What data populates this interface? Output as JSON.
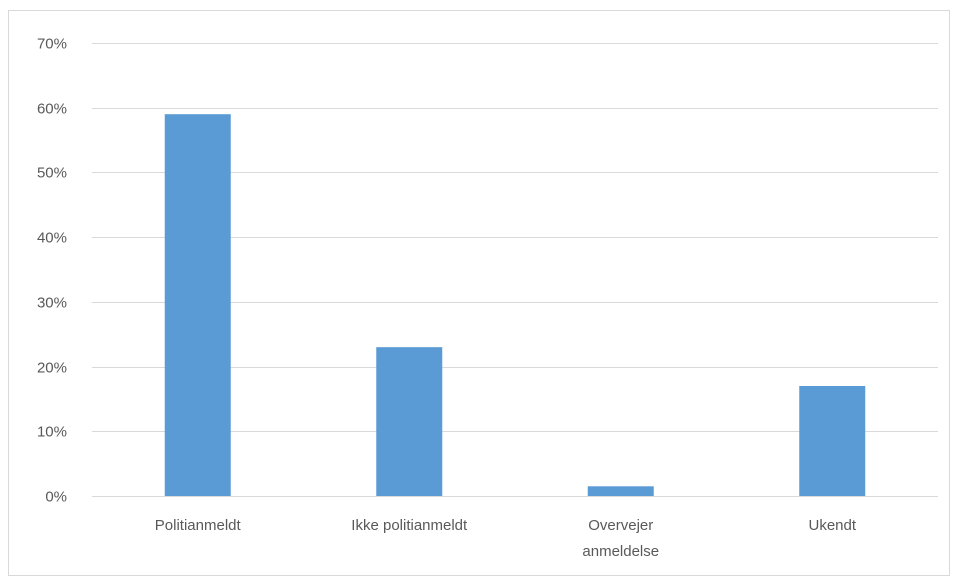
{
  "chart_data": {
    "type": "bar",
    "title": "",
    "xlabel": "",
    "ylabel": "",
    "categories": [
      [
        "Politianmeldt"
      ],
      [
        "Ikke politianmeldt"
      ],
      [
        "Overvejer",
        "anmeldelse"
      ],
      [
        "Ukendt"
      ]
    ],
    "values": [
      0.59,
      0.23,
      0.015,
      0.17
    ],
    "ylim": [
      0,
      0.7
    ],
    "yticks": [
      0,
      0.1,
      0.2,
      0.3,
      0.4,
      0.5,
      0.6,
      0.7
    ],
    "ytick_labels": [
      "0%",
      "10%",
      "20%",
      "30%",
      "40%",
      "50%",
      "60%",
      "70%"
    ],
    "grid": true,
    "legend": "none",
    "colors": {
      "bar": "#5b9bd5",
      "grid": "#d9d9d9",
      "text": "#595959"
    }
  }
}
